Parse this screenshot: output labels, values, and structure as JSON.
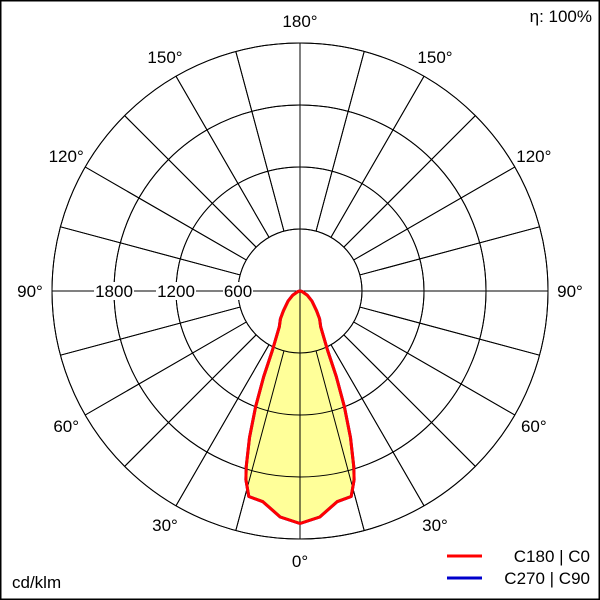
{
  "chart_data": {
    "type": "polar",
    "unit_label": "cd/klm",
    "efficiency_label": "η: 100%",
    "radial_ticks": [
      600,
      1200,
      1800
    ],
    "radial_max": 2400,
    "angle_ticks": [
      "0°",
      "30°",
      "60°",
      "90°",
      "120°",
      "150°",
      "180°"
    ],
    "angle_tick_values": [
      0,
      30,
      60,
      90,
      120,
      150,
      180
    ],
    "grid": true,
    "legend_position": "bottom-right",
    "fill_color": "#ffff99",
    "series": [
      {
        "name": "C180 | C0",
        "color": "#ff0000",
        "angles": [
          0,
          5,
          10,
          14,
          16,
          17,
          19,
          21,
          23,
          25,
          30,
          35,
          40,
          50,
          60,
          75,
          90,
          180
        ],
        "values": [
          2250,
          2195,
          2070,
          2050,
          1900,
          1780,
          1500,
          1200,
          900,
          630,
          400,
          330,
          250,
          150,
          80,
          20,
          0,
          0
        ]
      },
      {
        "name": "C270 | C90",
        "color": "#0000cc",
        "angles": [
          0,
          5,
          10,
          14,
          16,
          17,
          19,
          21,
          23,
          25,
          30,
          35,
          40,
          50,
          60,
          75,
          90,
          180
        ],
        "values": [
          2250,
          2195,
          2070,
          2050,
          1900,
          1780,
          1500,
          1200,
          900,
          630,
          400,
          330,
          250,
          150,
          80,
          20,
          0,
          0
        ]
      }
    ]
  }
}
